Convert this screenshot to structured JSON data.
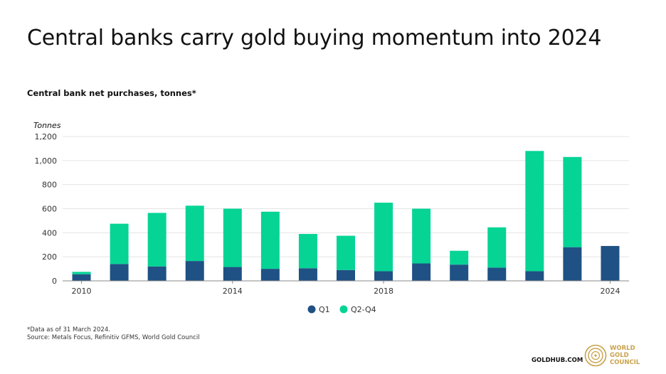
{
  "title": "Central banks carry gold buying momentum into 2024",
  "subtitle": "Central bank net purchases, tonnes*",
  "footnote": {
    "line1": "*Data as of 31 March 2024.",
    "line2": "Source: Metals Focus, Refinitiv GFMS, World Gold Council"
  },
  "brand": {
    "url": "GOLDHUB.COM",
    "logo_line1": "WORLD",
    "logo_line2": "GOLD",
    "logo_line3": "COUNCIL",
    "logo_color": "#c9a24b"
  },
  "chart_data": {
    "type": "bar",
    "stacked": true,
    "unit_label": "Tonnes",
    "categories": [
      "2010",
      "2011",
      "2012",
      "2013",
      "2014",
      "2015",
      "2016",
      "2017",
      "2018",
      "2019",
      "2020",
      "2021",
      "2022",
      "2023",
      "2024"
    ],
    "x_tick_labels": [
      "2010",
      "",
      "",
      "",
      "2014",
      "",
      "",
      "",
      "2018",
      "",
      "",
      "",
      "",
      "",
      "2024"
    ],
    "series": [
      {
        "name": "Q1",
        "color": "#1f5184",
        "values": [
          55,
          140,
          120,
          165,
          115,
          100,
          105,
          90,
          80,
          145,
          135,
          110,
          80,
          280,
          290
        ]
      },
      {
        "name": "Q2-Q4",
        "color": "#06d495",
        "values": [
          20,
          335,
          445,
          460,
          485,
          475,
          285,
          285,
          570,
          455,
          115,
          335,
          1000,
          750,
          0
        ]
      }
    ],
    "ylim": [
      0,
      1200
    ],
    "yticks": [
      0,
      200,
      400,
      600,
      800,
      1000,
      1200
    ],
    "ytick_labels": [
      "0",
      "200",
      "400",
      "600",
      "800",
      "1,000",
      "1,200"
    ],
    "grid": true,
    "legend_position": "bottom-center"
  }
}
